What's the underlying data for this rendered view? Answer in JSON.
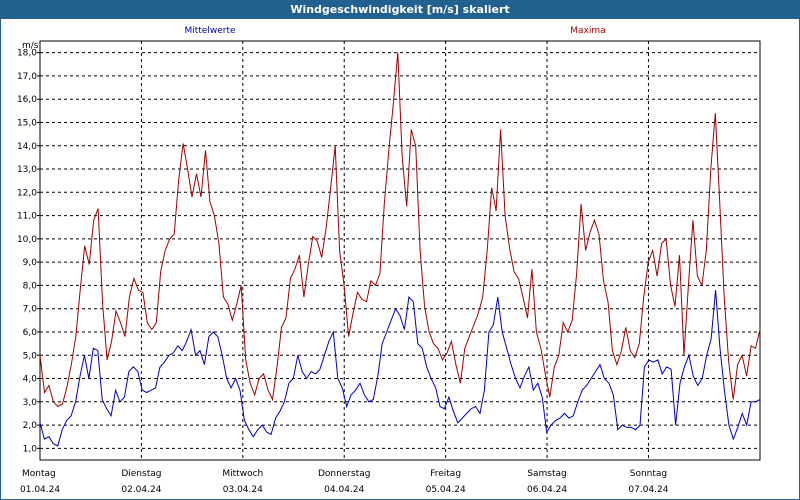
{
  "window": {
    "title": "Windgeschwindigkeit [m/s] skaliert"
  },
  "colors": {
    "mean": "#0000c0",
    "max": "#a00000",
    "grid": "#000000",
    "titlebar": "#22608f"
  },
  "chart_data": {
    "type": "line",
    "title": "Windgeschwindigkeit [m/s] skaliert",
    "ylabel": "m/s",
    "ylim": [
      0.5,
      18.5
    ],
    "yticks": [
      "1,0",
      "2,0",
      "3,0",
      "4,0",
      "5,0",
      "6,0",
      "7,0",
      "8,0",
      "9,0",
      "10,0",
      "11,0",
      "12,0",
      "13,0",
      "14,0",
      "15,0",
      "16,0",
      "17,0",
      "18,0"
    ],
    "xlim": [
      0,
      7.1
    ],
    "grid": true,
    "day_labels": [
      {
        "day": "Montag",
        "date": "01.04.24"
      },
      {
        "day": "Dienstag",
        "date": "02.04.24"
      },
      {
        "day": "Mittwoch",
        "date": "03.04.24"
      },
      {
        "day": "Donnerstag",
        "date": "04.04.24"
      },
      {
        "day": "Freitag",
        "date": "05.04.24"
      },
      {
        "day": "Samstag",
        "date": "06.04.24"
      },
      {
        "day": "Sonntag",
        "date": "07.04.24"
      }
    ],
    "series": [
      {
        "name": "Mittelwerte",
        "color": "#0000c0",
        "values": [
          2.1,
          1.4,
          1.5,
          1.2,
          1.1,
          1.8,
          2.2,
          2.4,
          3.0,
          4.1,
          5.0,
          4.0,
          5.3,
          5.2,
          3.1,
          2.7,
          2.4,
          3.5,
          3.0,
          3.2,
          4.3,
          4.5,
          4.3,
          3.5,
          3.4,
          3.5,
          3.6,
          4.5,
          4.7,
          5.0,
          5.1,
          5.4,
          5.2,
          5.6,
          6.1,
          5.0,
          5.2,
          4.6,
          5.8,
          6.0,
          5.8,
          5.0,
          4.0,
          3.6,
          4.0,
          3.5,
          2.2,
          1.8,
          1.5,
          1.8,
          2.0,
          1.7,
          1.6,
          2.3,
          2.6,
          3.0,
          3.8,
          4.0,
          5.0,
          4.3,
          4.0,
          4.3,
          4.2,
          4.4,
          5.0,
          5.6,
          6.0,
          4.0,
          3.6,
          2.8,
          3.3,
          3.5,
          3.8,
          3.3,
          3.0,
          3.1,
          4.1,
          5.5,
          6.0,
          6.5,
          7.0,
          6.7,
          6.1,
          7.5,
          7.3,
          5.5,
          5.3,
          4.5,
          4.0,
          3.6,
          2.8,
          2.7,
          3.2,
          2.6,
          2.1,
          2.3,
          2.5,
          2.7,
          2.8,
          2.5,
          3.5,
          6.0,
          6.3,
          7.5,
          6.0,
          5.3,
          4.6,
          4.0,
          3.6,
          4.1,
          4.5,
          3.5,
          3.8,
          3.2,
          1.7,
          2.0,
          2.2,
          2.3,
          2.5,
          2.3,
          2.4,
          3.0,
          3.5,
          3.7,
          4.0,
          4.3,
          4.6,
          4.0,
          3.8,
          3.3,
          1.8,
          2.0,
          1.9,
          1.9,
          1.8,
          2.0,
          4.5,
          4.8,
          4.7,
          4.8,
          4.2,
          4.5,
          4.4,
          2.0,
          3.8,
          4.5,
          5.0,
          4.1,
          3.7,
          4.0,
          5.0,
          5.7,
          7.8,
          5.3,
          3.5,
          2.0,
          1.4,
          1.9,
          2.5,
          2.0,
          3.0,
          3.0,
          3.1
        ]
      },
      {
        "name": "Maxima",
        "color": "#a00000",
        "values": [
          5.0,
          3.4,
          3.7,
          3.0,
          2.8,
          2.9,
          3.6,
          4.6,
          5.8,
          7.8,
          9.7,
          8.9,
          10.8,
          11.3,
          7.2,
          4.8,
          5.6,
          6.9,
          6.4,
          5.8,
          7.5,
          8.3,
          7.8,
          7.7,
          6.4,
          6.1,
          6.4,
          8.6,
          9.5,
          10.0,
          10.2,
          12.5,
          14.1,
          13.0,
          11.8,
          12.8,
          11.8,
          13.8,
          11.6,
          11.0,
          9.8,
          7.5,
          7.2,
          6.5,
          7.2,
          8.0,
          4.8,
          3.8,
          3.3,
          4.0,
          4.2,
          3.5,
          3.1,
          4.5,
          6.2,
          6.6,
          8.3,
          8.7,
          9.3,
          7.5,
          8.9,
          10.1,
          9.9,
          9.2,
          10.5,
          12.2,
          14.0,
          9.5,
          8.0,
          5.8,
          6.8,
          7.7,
          7.4,
          7.3,
          8.2,
          8.0,
          8.5,
          11.5,
          13.8,
          15.8,
          18.0,
          13.5,
          11.4,
          14.7,
          14.0,
          9.5,
          7.1,
          6.0,
          5.5,
          5.3,
          4.8,
          5.1,
          5.6,
          4.6,
          3.8,
          5.3,
          5.8,
          6.3,
          6.8,
          7.5,
          9.5,
          12.2,
          11.2,
          14.7,
          11.0,
          9.6,
          8.6,
          8.3,
          7.5,
          6.6,
          8.7,
          6.0,
          5.3,
          4.2,
          3.2,
          4.5,
          5.0,
          6.4,
          6.0,
          6.5,
          8.5,
          11.5,
          9.5,
          10.3,
          10.8,
          10.2,
          8.2,
          7.3,
          5.2,
          4.6,
          5.2,
          6.2,
          5.2,
          4.9,
          5.5,
          7.5,
          9.0,
          9.5,
          8.4,
          9.8,
          10.0,
          8.0,
          7.1,
          9.3,
          5.0,
          8.0,
          10.8,
          8.4,
          8.0,
          9.5,
          13.0,
          15.4,
          11.5,
          7.5,
          4.7,
          3.1,
          4.6,
          5.0,
          4.1,
          5.4,
          5.3,
          6.1
        ]
      }
    ]
  }
}
